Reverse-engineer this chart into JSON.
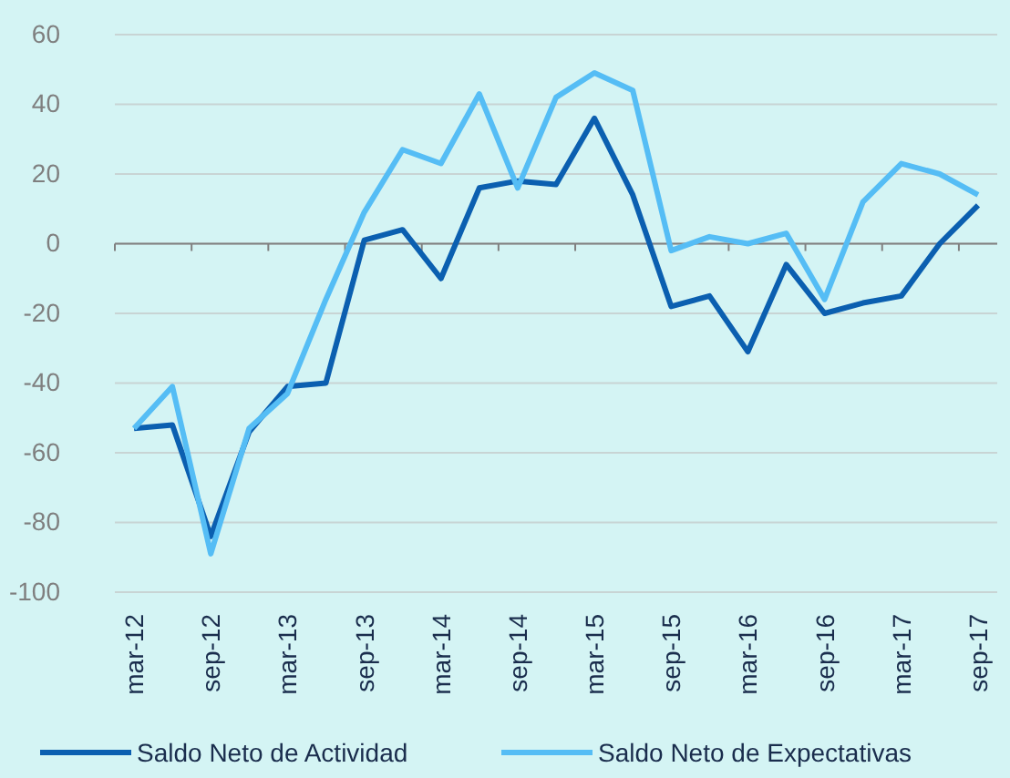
{
  "chart_data": {
    "type": "line",
    "categories": [
      "mar-12",
      null,
      "sep-12",
      null,
      "mar-13",
      null,
      "sep-13",
      null,
      "mar-14",
      null,
      "sep-14",
      null,
      "mar-15",
      null,
      "sep-15",
      null,
      "mar-16",
      null,
      "sep-16",
      null,
      "mar-17",
      null,
      "sep-17"
    ],
    "series": [
      {
        "name": "Saldo Neto de Actividad",
        "color": "#0b5fb0",
        "values": [
          -53,
          -52,
          -84,
          -54,
          -41,
          -40,
          1,
          4,
          -10,
          16,
          18,
          17,
          36,
          14,
          -18,
          -15,
          -31,
          -6,
          -20,
          -17,
          -15,
          0,
          11
        ]
      },
      {
        "name": "Saldo Neto de Expectativas",
        "color": "#55bdf5",
        "values": [
          -53,
          -41,
          -89,
          -53,
          -43,
          -16,
          9,
          27,
          23,
          43,
          16,
          42,
          49,
          44,
          -2,
          2,
          0,
          3,
          -16,
          12,
          23,
          20,
          14
        ]
      }
    ],
    "ylim": [
      -100,
      60
    ],
    "yticks": [
      -100,
      -80,
      -60,
      -40,
      -20,
      0,
      20,
      40,
      60
    ],
    "grid": "y",
    "legend": "bottom",
    "marker": "none",
    "line_style": "solid"
  }
}
